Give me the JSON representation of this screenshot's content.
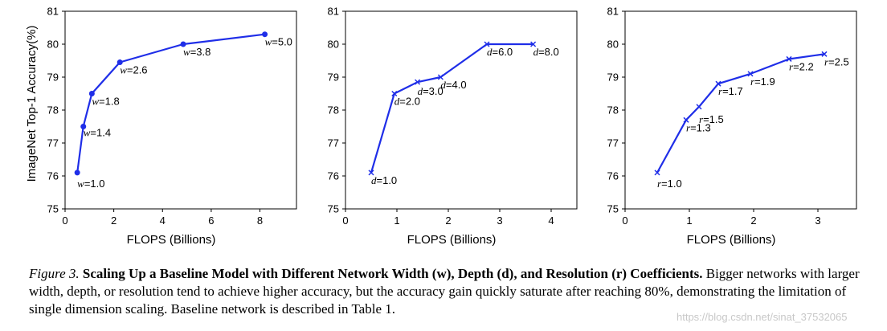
{
  "chart_data": [
    {
      "type": "line",
      "xlabel": "FLOPS (Billions)",
      "ylabel": "ImageNet Top-1 Accuracy(%)",
      "xlim": [
        0,
        9.5
      ],
      "ylim": [
        75,
        81
      ],
      "xticks": [
        0,
        2,
        4,
        6,
        8
      ],
      "yticks": [
        75,
        76,
        77,
        78,
        79,
        80,
        81
      ],
      "marker": "dot",
      "color": "#1f2ee8",
      "grid": false,
      "series": [
        {
          "x": [
            0.5,
            0.75,
            1.1,
            2.25,
            4.85,
            8.2
          ],
          "y": [
            76.1,
            77.5,
            78.5,
            79.45,
            80.0,
            80.3
          ],
          "labels": [
            {
              "var": "w",
              "val": "=1.0"
            },
            {
              "var": "w",
              "val": "=1.4"
            },
            {
              "var": "w",
              "val": "=1.8"
            },
            {
              "var": "w",
              "val": "=2.6"
            },
            {
              "var": "w",
              "val": "=3.8"
            },
            {
              "var": "w",
              "val": "=5.0"
            }
          ]
        }
      ]
    },
    {
      "type": "line",
      "xlabel": "FLOPS (Billions)",
      "ylabel": "",
      "xlim": [
        0,
        4.5
      ],
      "ylim": [
        75,
        81
      ],
      "xticks": [
        0,
        1,
        2,
        3,
        4
      ],
      "yticks": [
        75,
        76,
        77,
        78,
        79,
        80,
        81
      ],
      "marker": "x",
      "color": "#1f2ee8",
      "grid": false,
      "series": [
        {
          "x": [
            0.5,
            0.95,
            1.4,
            1.85,
            2.75,
            3.65
          ],
          "y": [
            76.1,
            78.5,
            78.85,
            79.0,
            80.0,
            80.0
          ],
          "labels": [
            {
              "var": "d",
              "val": "=1.0"
            },
            {
              "var": "d",
              "val": "=2.0"
            },
            {
              "var": "d",
              "val": "=3.0"
            },
            {
              "var": "d",
              "val": "=4.0"
            },
            {
              "var": "d",
              "val": "=6.0"
            },
            {
              "var": "d",
              "val": "=8.0"
            }
          ]
        }
      ]
    },
    {
      "type": "line",
      "xlabel": "FLOPS (Billions)",
      "ylabel": "",
      "xlim": [
        0,
        3.6
      ],
      "ylim": [
        75,
        81
      ],
      "xticks": [
        0,
        1,
        2,
        3
      ],
      "yticks": [
        75,
        76,
        77,
        78,
        79,
        80,
        81
      ],
      "marker": "x",
      "color": "#1f2ee8",
      "grid": false,
      "series": [
        {
          "x": [
            0.5,
            0.95,
            1.15,
            1.45,
            1.95,
            2.55,
            3.1
          ],
          "y": [
            76.1,
            77.7,
            78.1,
            78.8,
            79.1,
            79.55,
            79.7
          ],
          "labels": [
            {
              "var": "r",
              "val": "=1.0"
            },
            {
              "var": "r",
              "val": "=1.3"
            },
            {
              "var": "r",
              "val": "=1.5"
            },
            {
              "var": "r",
              "val": "=1.7"
            },
            {
              "var": "r",
              "val": "=1.9"
            },
            {
              "var": "r",
              "val": "=2.2"
            },
            {
              "var": "r",
              "val": "=2.5"
            }
          ]
        }
      ]
    }
  ],
  "caption": {
    "label": "Figure 3.",
    "title": "Scaling Up a Baseline Model with Different Network Width (w), Depth (d), and Resolution (r) Coefficients.",
    "body": "Bigger networks with larger width, depth, or resolution tend to achieve higher accuracy, but the accuracy gain quickly saturate after reaching 80%, demonstrating the limitation of single dimension scaling. Baseline network is described in Table 1."
  },
  "watermark": "https://blog.csdn.net/sinat_37532065"
}
